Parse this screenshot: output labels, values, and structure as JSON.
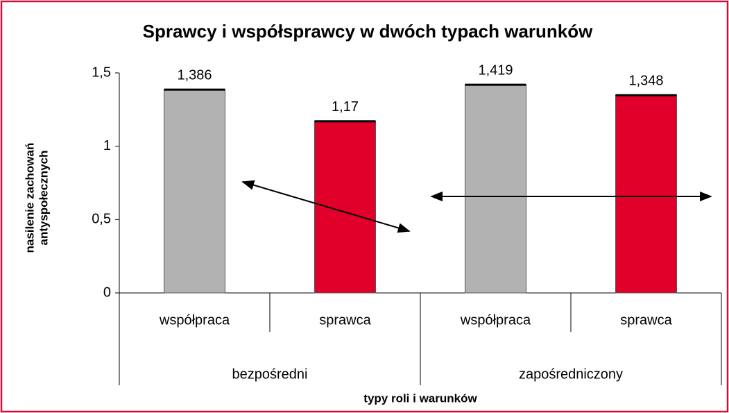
{
  "chart_data": {
    "type": "bar",
    "title": "Sprawcy i współsprawcy w dwóch typach warunków",
    "categories": [
      "współpraca",
      "sprawca",
      "współpraca",
      "sprawca"
    ],
    "groups": [
      "bezpośredni",
      "zapośredniczony"
    ],
    "values": [
      1.386,
      1.17,
      1.419,
      1.348
    ],
    "value_labels": [
      "1,386",
      "1,17",
      "1,419",
      "1,348"
    ],
    "colors": [
      "#b2b2b2",
      "#e0002a",
      "#b2b2b2",
      "#e0002a"
    ],
    "xlabel": "typy roli i warunków",
    "ylabel": [
      "nasilenie zachowań",
      "antyspołecznych"
    ],
    "ylim": [
      0,
      1.5
    ],
    "yticks": [
      0,
      {
        "value": 0.5,
        "label": "0,5"
      },
      1,
      {
        "value": 1.5,
        "label": "1,5"
      }
    ],
    "grid": false
  }
}
